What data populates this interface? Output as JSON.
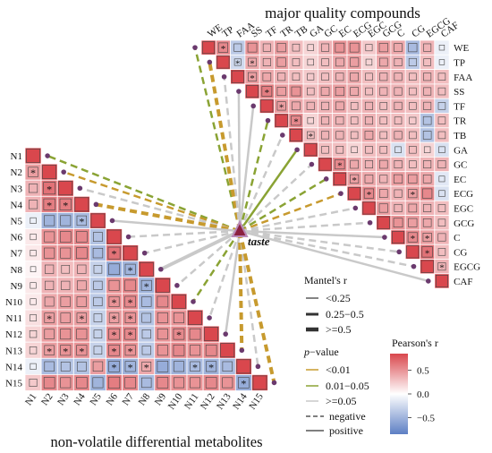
{
  "chart_data": {
    "type": "heatmap",
    "title_quality": "major quality compounds",
    "title_metabolites": "non-volatile differential metabolites",
    "center_label": "taste",
    "quality_labels": [
      "WE",
      "TP",
      "FAA",
      "SS",
      "TF",
      "TR",
      "TB",
      "GA",
      "GC",
      "EC",
      "ECG",
      "EGC",
      "GCG",
      "C",
      "CG",
      "EGCG",
      "CAF"
    ],
    "metabolite_labels": [
      "N1",
      "N2",
      "N3",
      "N4",
      "N5",
      "N6",
      "N7",
      "N8",
      "N9",
      "N10",
      "N11",
      "N12",
      "N13",
      "N14",
      "N15"
    ],
    "quality_matrix": [
      [
        1,
        0.55,
        -0.35,
        0.5,
        0.35,
        0.45,
        0.3,
        0.2,
        0.35,
        0.5,
        0.5,
        0.25,
        0.45,
        0.4,
        -0.45,
        0.35,
        -0.1
      ],
      [
        0.55,
        1,
        -0.25,
        0.4,
        0.35,
        0.45,
        0.3,
        0.2,
        0.3,
        0.4,
        0.45,
        0.2,
        0.4,
        0.35,
        -0.35,
        0.3,
        -0.1
      ],
      [
        -0.35,
        -0.25,
        1,
        0.45,
        0.4,
        0.35,
        0.3,
        0.25,
        0.3,
        0.35,
        0.4,
        0.3,
        0.35,
        0.35,
        0.3,
        0.35,
        0.3
      ],
      [
        0.5,
        0.4,
        0.45,
        1,
        0.6,
        0.45,
        0.5,
        0.3,
        0.4,
        0.45,
        0.4,
        0.3,
        0.35,
        0.35,
        0.3,
        0.35,
        0.3
      ],
      [
        0.35,
        0.35,
        0.4,
        0.6,
        1,
        0.45,
        0.4,
        0.35,
        0.35,
        0.4,
        0.3,
        0.35,
        0.3,
        0.35,
        0.3,
        0.35,
        -0.3
      ],
      [
        0.45,
        0.45,
        0.35,
        0.45,
        0.45,
        1,
        0.55,
        0.2,
        0.35,
        0.35,
        0.3,
        0.35,
        0.3,
        0.3,
        0.25,
        -0.4,
        0.3
      ],
      [
        0.3,
        0.3,
        0.3,
        0.5,
        0.4,
        0.55,
        1,
        0.3,
        0.35,
        0.35,
        0.3,
        0.4,
        0.3,
        0.35,
        0.3,
        -0.4,
        0.3
      ],
      [
        0.2,
        0.2,
        0.25,
        0.3,
        0.35,
        0.2,
        0.3,
        1,
        0.3,
        0.3,
        0.2,
        0.3,
        0.3,
        -0.2,
        0.3,
        0.2,
        -0.2
      ],
      [
        0.35,
        0.3,
        0.3,
        0.4,
        0.35,
        0.35,
        0.35,
        0.3,
        1,
        0.55,
        0.4,
        0.35,
        0.4,
        0.35,
        0.3,
        0.35,
        0.35
      ],
      [
        0.5,
        0.4,
        0.35,
        0.45,
        0.4,
        0.35,
        0.35,
        0.3,
        0.55,
        1,
        0.45,
        0.4,
        0.35,
        0.45,
        0.45,
        0.4,
        -0.15
      ],
      [
        0.5,
        0.45,
        0.4,
        0.4,
        0.3,
        0.3,
        0.3,
        0.2,
        0.4,
        0.45,
        1,
        0.55,
        0.4,
        0.35,
        0.45,
        0.55,
        -0.2
      ],
      [
        0.25,
        0.2,
        0.3,
        0.3,
        0.35,
        0.35,
        0.4,
        0.3,
        0.35,
        0.4,
        0.55,
        1,
        0.45,
        0.35,
        0.4,
        0.35,
        0.3
      ],
      [
        0.45,
        0.4,
        0.35,
        0.35,
        0.3,
        0.3,
        0.3,
        0.3,
        0.4,
        0.35,
        0.4,
        0.45,
        1,
        0.5,
        0.45,
        0.4,
        0.3
      ],
      [
        0.4,
        0.35,
        0.35,
        0.35,
        0.35,
        0.3,
        0.35,
        -0.2,
        0.35,
        0.45,
        0.35,
        0.35,
        0.5,
        1,
        0.55,
        0.45,
        0.35
      ],
      [
        -0.45,
        -0.35,
        0.3,
        0.3,
        0.3,
        0.25,
        0.3,
        0.3,
        0.3,
        0.45,
        0.45,
        0.4,
        0.45,
        0.55,
        1,
        0.65,
        0.3
      ],
      [
        0.35,
        0.3,
        0.35,
        0.35,
        0.35,
        -0.4,
        -0.4,
        0.2,
        0.35,
        0.4,
        0.55,
        0.35,
        0.4,
        0.45,
        0.65,
        1,
        0.35
      ],
      [
        -0.1,
        -0.1,
        0.3,
        0.3,
        -0.3,
        0.3,
        0.3,
        -0.2,
        0.35,
        -0.15,
        -0.2,
        0.3,
        0.3,
        0.35,
        0.3,
        0.35,
        1
      ]
    ],
    "quality_sig": [
      [
        0,
        1
      ],
      [
        1,
        2
      ],
      [
        2,
        3
      ],
      [
        3,
        4
      ],
      [
        4,
        5
      ],
      [
        5,
        6
      ],
      [
        9,
        10
      ],
      [
        13,
        14
      ],
      [
        14,
        15
      ],
      [
        15,
        16
      ],
      [
        1,
        3
      ],
      [
        6,
        7
      ],
      [
        8,
        9
      ],
      [
        10,
        11
      ],
      [
        13,
        15
      ],
      [
        10,
        14
      ]
    ],
    "metabolite_matrix": [
      [
        1,
        0.45,
        0.35,
        0.35,
        -0.1,
        0.1,
        0.1,
        0.05,
        0.1,
        0.1,
        0.15,
        0.2,
        0.2,
        -0.1,
        0.25
      ],
      [
        0.45,
        1,
        0.65,
        0.6,
        -0.5,
        0.5,
        0.5,
        0.35,
        0.35,
        0.4,
        0.45,
        0.45,
        0.45,
        -0.45,
        0.55
      ],
      [
        0.35,
        0.65,
        1,
        0.6,
        -0.5,
        0.55,
        0.5,
        0.3,
        0.35,
        0.45,
        0.45,
        0.5,
        0.5,
        -0.4,
        0.5
      ],
      [
        0.35,
        0.6,
        0.6,
        1,
        -0.45,
        0.55,
        0.55,
        0.35,
        0.4,
        0.45,
        0.45,
        0.5,
        0.5,
        -0.4,
        0.55
      ],
      [
        -0.1,
        -0.5,
        -0.5,
        -0.45,
        1,
        -0.4,
        -0.45,
        -0.3,
        -0.35,
        -0.35,
        -0.3,
        -0.3,
        -0.3,
        0.45,
        -0.5
      ],
      [
        0.1,
        0.5,
        0.55,
        0.55,
        -0.4,
        1,
        0.65,
        -0.55,
        0.5,
        0.5,
        0.45,
        0.55,
        0.55,
        -0.55,
        0.6
      ],
      [
        0.1,
        0.5,
        0.5,
        0.55,
        -0.45,
        0.65,
        1,
        -0.5,
        0.55,
        0.55,
        0.5,
        0.55,
        0.5,
        -0.5,
        0.55
      ],
      [
        0.05,
        0.35,
        0.3,
        0.35,
        -0.3,
        -0.55,
        -0.5,
        1,
        -0.5,
        -0.45,
        -0.4,
        -0.35,
        -0.35,
        0.4,
        -0.45
      ],
      [
        0.1,
        0.35,
        0.35,
        0.4,
        -0.35,
        0.5,
        0.55,
        -0.5,
        1,
        0.55,
        0.5,
        0.5,
        0.5,
        -0.55,
        0.55
      ],
      [
        0.1,
        0.4,
        0.45,
        0.45,
        -0.35,
        0.5,
        0.55,
        -0.45,
        0.55,
        1,
        0.5,
        0.55,
        0.55,
        -0.5,
        0.5
      ],
      [
        0.15,
        0.45,
        0.45,
        0.45,
        -0.3,
        0.45,
        0.5,
        -0.4,
        0.5,
        0.5,
        1,
        0.55,
        0.5,
        -0.45,
        0.5
      ],
      [
        0.2,
        0.45,
        0.5,
        0.5,
        -0.3,
        0.55,
        0.55,
        -0.35,
        0.5,
        0.55,
        0.55,
        1,
        0.55,
        -0.5,
        0.55
      ],
      [
        0.2,
        0.45,
        0.5,
        0.5,
        -0.3,
        0.55,
        0.5,
        -0.35,
        0.5,
        0.55,
        0.5,
        0.55,
        1,
        -0.45,
        0.5
      ],
      [
        -0.1,
        -0.45,
        -0.4,
        -0.4,
        0.45,
        -0.55,
        -0.5,
        0.4,
        -0.55,
        -0.5,
        -0.45,
        -0.5,
        -0.45,
        1,
        -0.55
      ],
      [
        0.25,
        0.55,
        0.5,
        0.55,
        -0.5,
        0.6,
        0.55,
        -0.45,
        0.55,
        0.5,
        0.5,
        0.55,
        0.5,
        -0.55,
        1
      ]
    ],
    "metabolite_sig": [
      [
        1,
        0
      ],
      [
        2,
        1
      ],
      [
        3,
        1
      ],
      [
        3,
        2
      ],
      [
        4,
        3
      ],
      [
        9,
        5
      ],
      [
        10,
        5
      ],
      [
        11,
        5
      ],
      [
        12,
        5
      ],
      [
        10,
        6
      ],
      [
        11,
        6
      ],
      [
        12,
        6
      ],
      [
        8,
        7
      ],
      [
        13,
        7
      ],
      [
        14,
        13
      ],
      [
        10,
        1
      ],
      [
        10,
        3
      ],
      [
        12,
        1
      ],
      [
        12,
        2
      ],
      [
        12,
        3
      ],
      [
        11,
        9
      ],
      [
        13,
        5
      ],
      [
        13,
        6
      ],
      [
        13,
        10
      ],
      [
        13,
        11
      ],
      [
        9,
        6
      ],
      [
        6,
        5
      ],
      [
        7,
        6
      ],
      [
        8,
        9
      ]
    ],
    "quality_links": [
      {
        "node": 0,
        "r": "<0.25",
        "p": "0.01-0.05",
        "sign": "negative"
      },
      {
        "node": 1,
        "r": "0.25-0.5",
        "p": "<0.01",
        "sign": "negative"
      },
      {
        "node": 2,
        "r": "<0.25",
        "p": ">=0.05",
        "sign": "negative"
      },
      {
        "node": 3,
        "r": "<0.25",
        "p": ">=0.05",
        "sign": "positive"
      },
      {
        "node": 4,
        "r": "<0.25",
        "p": ">=0.05",
        "sign": "positive"
      },
      {
        "node": 5,
        "r": "<0.25",
        "p": "0.01-0.05",
        "sign": "negative"
      },
      {
        "node": 6,
        "r": "<0.25",
        "p": ">=0.05",
        "sign": "negative"
      },
      {
        "node": 7,
        "r": "<0.25",
        "p": "0.01-0.05",
        "sign": "positive"
      },
      {
        "node": 8,
        "r": "<0.25",
        "p": ">=0.05",
        "sign": "negative"
      },
      {
        "node": 9,
        "r": "<0.25",
        "p": "0.01-0.05",
        "sign": "negative"
      },
      {
        "node": 10,
        "r": "<0.25",
        "p": "<0.01",
        "sign": "negative"
      },
      {
        "node": 11,
        "r": "<0.25",
        "p": ">=0.05",
        "sign": "negative"
      },
      {
        "node": 12,
        "r": "<0.25",
        "p": ">=0.05",
        "sign": "negative"
      },
      {
        "node": 13,
        "r": "<0.25",
        "p": ">=0.05",
        "sign": "positive"
      },
      {
        "node": 14,
        "r": "<0.25",
        "p": ">=0.05",
        "sign": "negative"
      },
      {
        "node": 15,
        "r": "<0.25",
        "p": ">=0.05",
        "sign": "negative"
      },
      {
        "node": 16,
        "r": "<0.25",
        "p": ">=0.05",
        "sign": "positive"
      }
    ],
    "metabolite_links": [
      {
        "node": 0,
        "r": "<0.25",
        "p": "0.01-0.05",
        "sign": "negative"
      },
      {
        "node": 1,
        "r": "<0.25",
        "p": "<0.01",
        "sign": "negative"
      },
      {
        "node": 2,
        "r": "<0.25",
        "p": ">=0.05",
        "sign": "negative"
      },
      {
        "node": 3,
        "r": "0.25-0.5",
        "p": "<0.01",
        "sign": "negative"
      },
      {
        "node": 4,
        "r": "<0.25",
        "p": ">=0.05",
        "sign": "positive"
      },
      {
        "node": 5,
        "r": "<0.25",
        "p": ">=0.05",
        "sign": "negative"
      },
      {
        "node": 6,
        "r": "<0.25",
        "p": ">=0.05",
        "sign": "negative"
      },
      {
        "node": 7,
        "r": "0.25-0.5",
        "p": ">=0.05",
        "sign": "positive"
      },
      {
        "node": 8,
        "r": "<0.25",
        "p": ">=0.05",
        "sign": "negative"
      },
      {
        "node": 9,
        "r": "<0.25",
        "p": "0.01-0.05",
        "sign": "negative"
      },
      {
        "node": 10,
        "r": "<0.25",
        "p": ">=0.05",
        "sign": "negative"
      },
      {
        "node": 11,
        "r": "<0.25",
        "p": ">=0.05",
        "sign": "positive"
      },
      {
        "node": 12,
        "r": "0.25-0.5",
        "p": "<0.01",
        "sign": "negative"
      },
      {
        "node": 13,
        "r": "<0.25",
        "p": ">=0.05",
        "sign": "negative"
      },
      {
        "node": 14,
        "r": "0.25-0.5",
        "p": "<0.01",
        "sign": "negative"
      }
    ],
    "legend_mantel": {
      "title": "Mantel's r",
      "items": [
        "<0.25",
        "0.25−0.5",
        ">=0.5"
      ]
    },
    "legend_p": {
      "title_italic": "p",
      "title_rest": "−value",
      "items": [
        "<0.01",
        "0.01−0.05",
        ">=0.05"
      ]
    },
    "legend_sign": {
      "items": [
        "negative",
        "positive"
      ]
    },
    "colorbar": {
      "title": "Pearson's r",
      "ticks": [
        "0.5",
        "0.0",
        "−0.5"
      ],
      "tick_values": [
        0.5,
        0,
        -0.5
      ],
      "range": [
        -0.85,
        0.85
      ]
    },
    "colors": {
      "pos": "#d9474d",
      "neg": "#5d7fc4",
      "p_high": "#c79a2e",
      "p_mid": "#8aa334",
      "p_low": "#c9c9c9",
      "node": "#6b3a6e",
      "center": "#8b2140",
      "center_stroke": "#b98ab8",
      "sig_star": "#5a0f18"
    }
  }
}
